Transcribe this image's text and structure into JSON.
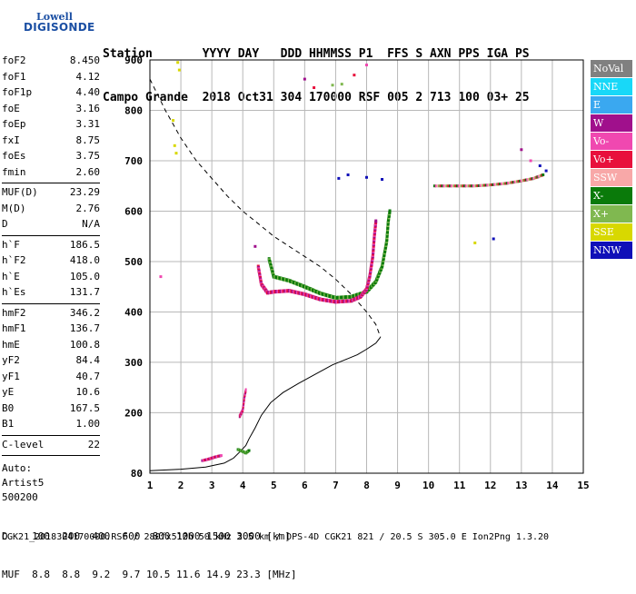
{
  "logo": {
    "line1": "Lowell",
    "line2": "DIGISONDE"
  },
  "header": {
    "row1": "Station       YYYY DAY   DDD HHMMSS P1  FFS S AXN PPS IGA PS",
    "row2": "Campo Grande  2018 Oct31 304 170000 RSF 005 2 713 100 03+ 25"
  },
  "params": {
    "block1": [
      {
        "k": "foF2",
        "v": "8.450"
      },
      {
        "k": "foF1",
        "v": "4.12"
      },
      {
        "k": "foF1p",
        "v": "4.40"
      },
      {
        "k": "foE",
        "v": "3.16"
      },
      {
        "k": "foEp",
        "v": "3.31"
      },
      {
        "k": "fxI",
        "v": "8.75"
      },
      {
        "k": "foEs",
        "v": "3.75"
      },
      {
        "k": "fmin",
        "v": "2.60"
      }
    ],
    "block2": [
      {
        "k": "MUF(D)",
        "v": "23.29"
      },
      {
        "k": "M(D)",
        "v": "2.76"
      },
      {
        "k": "D",
        "v": "N/A"
      }
    ],
    "block3": [
      {
        "k": "h`F",
        "v": "186.5"
      },
      {
        "k": "h`F2",
        "v": "418.0"
      },
      {
        "k": "h`E",
        "v": "105.0"
      },
      {
        "k": "h`Es",
        "v": "131.7"
      }
    ],
    "block4": [
      {
        "k": "hmF2",
        "v": "346.2"
      },
      {
        "k": "hmF1",
        "v": "136.7"
      },
      {
        "k": "hmE",
        "v": "100.8"
      },
      {
        "k": "yF2",
        "v": "84.4"
      },
      {
        "k": "yF1",
        "v": "40.7"
      },
      {
        "k": "yE",
        "v": "10.6"
      },
      {
        "k": "B0",
        "v": "167.5"
      },
      {
        "k": "B1",
        "v": "1.00"
      }
    ],
    "block5": [
      {
        "k": "C-level",
        "v": "22"
      }
    ],
    "auto": [
      "Auto:",
      "Artist5",
      "500200"
    ]
  },
  "legend": [
    {
      "label": "NoVal",
      "color": "#808080"
    },
    {
      "label": "NNE",
      "color": "#18d8f8"
    },
    {
      "label": "E",
      "color": "#3aa8f0"
    },
    {
      "label": "W",
      "color": "#a0108c"
    },
    {
      "label": "Vo-",
      "color": "#f048b0"
    },
    {
      "label": "Vo+",
      "color": "#e8103c"
    },
    {
      "label": "SSW",
      "color": "#f8a8a8"
    },
    {
      "label": "X-",
      "color": "#0a7a0a"
    },
    {
      "label": "X+",
      "color": "#80b850"
    },
    {
      "label": "SSE",
      "color": "#d8d800"
    },
    {
      "label": "NNW",
      "color": "#1010b8"
    }
  ],
  "bottom": {
    "d_row": "D    100  200  400  600  800 1000 1500 3000 [km]",
    "muf_row": "MUF  8.8  8.8  9.2  9.7 10.5 11.6 14.9 23.3 [MHz]",
    "footer": "CGK21_2018304170000.RSF / 280fx512h 50 kHz 2.5 km / DPS-4D CGK21 821 / 20.5 S 305.0 E Ion2Png 1.3.20"
  },
  "chart_data": {
    "type": "scatter",
    "xlabel": "",
    "ylabel": "",
    "xlim": [
      1,
      15
    ],
    "ylim": [
      80,
      900
    ],
    "xticks": [
      1,
      2,
      3,
      4,
      5,
      6,
      7,
      8,
      9,
      10,
      11,
      12,
      13,
      14,
      15
    ],
    "yticks": [
      80,
      200,
      300,
      400,
      500,
      600,
      700,
      800,
      900
    ],
    "grid": true,
    "legend_position": "right",
    "profile_solid": [
      [
        1.0,
        85
      ],
      [
        2.0,
        88
      ],
      [
        2.8,
        92
      ],
      [
        3.4,
        100
      ],
      [
        3.7,
        110
      ],
      [
        3.9,
        122
      ],
      [
        4.1,
        135
      ],
      [
        4.2,
        148
      ],
      [
        4.4,
        170
      ],
      [
        4.6,
        195
      ],
      [
        4.9,
        220
      ],
      [
        5.3,
        240
      ],
      [
        5.8,
        258
      ],
      [
        6.3,
        275
      ],
      [
        6.9,
        295
      ],
      [
        7.3,
        305
      ],
      [
        7.7,
        315
      ],
      [
        8.0,
        326
      ],
      [
        8.3,
        338
      ],
      [
        8.45,
        350
      ]
    ],
    "profile_dashed": [
      [
        1.0,
        862
      ],
      [
        1.5,
        800
      ],
      [
        2.0,
        745
      ],
      [
        2.5,
        700
      ],
      [
        3.0,
        665
      ],
      [
        3.5,
        630
      ],
      [
        4.0,
        600
      ],
      [
        4.5,
        575
      ],
      [
        5.0,
        550
      ],
      [
        5.5,
        530
      ],
      [
        6.0,
        510
      ],
      [
        6.5,
        490
      ],
      [
        7.0,
        465
      ],
      [
        7.5,
        435
      ],
      [
        8.0,
        400
      ],
      [
        8.3,
        375
      ],
      [
        8.45,
        350
      ]
    ],
    "trace_vo": [
      [
        4.5,
        490
      ],
      [
        4.6,
        455
      ],
      [
        4.8,
        438
      ],
      [
        5.0,
        440
      ],
      [
        5.5,
        442
      ],
      [
        6.0,
        435
      ],
      [
        6.5,
        425
      ],
      [
        7.0,
        420
      ],
      [
        7.5,
        422
      ],
      [
        7.8,
        430
      ],
      [
        8.0,
        445
      ],
      [
        8.1,
        470
      ],
      [
        8.2,
        510
      ],
      [
        8.25,
        550
      ],
      [
        8.3,
        580
      ]
    ],
    "trace_x": [
      [
        4.85,
        505
      ],
      [
        5.0,
        470
      ],
      [
        5.5,
        462
      ],
      [
        6.0,
        450
      ],
      [
        6.5,
        437
      ],
      [
        7.0,
        428
      ],
      [
        7.5,
        430
      ],
      [
        8.0,
        440
      ],
      [
        8.3,
        460
      ],
      [
        8.5,
        490
      ],
      [
        8.65,
        540
      ],
      [
        8.7,
        580
      ],
      [
        8.75,
        600
      ]
    ],
    "trace_e_vo": [
      [
        2.7,
        105
      ],
      [
        2.9,
        108
      ],
      [
        3.1,
        112
      ],
      [
        3.3,
        115
      ]
    ],
    "trace_e_x": [
      [
        3.85,
        127
      ],
      [
        4.0,
        123
      ],
      [
        4.1,
        120
      ],
      [
        4.2,
        125
      ]
    ],
    "trace_es": [
      [
        3.9,
        193
      ],
      [
        4.0,
        205
      ],
      [
        4.05,
        230
      ],
      [
        4.1,
        245
      ]
    ],
    "trace_multi": [
      [
        10.2,
        650
      ],
      [
        10.7,
        650
      ],
      [
        11.5,
        650
      ],
      [
        12.0,
        652
      ],
      [
        12.5,
        655
      ],
      [
        13.0,
        660
      ],
      [
        13.4,
        665
      ],
      [
        13.7,
        672
      ]
    ],
    "scatter_misc": [
      {
        "x": 1.35,
        "y": 470,
        "c": "#f048b0"
      },
      {
        "x": 1.9,
        "y": 895,
        "c": "#d8d800"
      },
      {
        "x": 1.95,
        "y": 880,
        "c": "#d8d800"
      },
      {
        "x": 1.75,
        "y": 780,
        "c": "#d8d800"
      },
      {
        "x": 1.8,
        "y": 730,
        "c": "#d8d800"
      },
      {
        "x": 1.85,
        "y": 715,
        "c": "#d8d800"
      },
      {
        "x": 6.0,
        "y": 862,
        "c": "#a0108c"
      },
      {
        "x": 6.3,
        "y": 845,
        "c": "#e8103c"
      },
      {
        "x": 6.9,
        "y": 850,
        "c": "#80b850"
      },
      {
        "x": 7.2,
        "y": 852,
        "c": "#80b850"
      },
      {
        "x": 7.6,
        "y": 870,
        "c": "#e8103c"
      },
      {
        "x": 8.0,
        "y": 890,
        "c": "#f048b0"
      },
      {
        "x": 4.4,
        "y": 530,
        "c": "#a0108c"
      },
      {
        "x": 7.1,
        "y": 665,
        "c": "#1010b8"
      },
      {
        "x": 7.4,
        "y": 672,
        "c": "#1010b8"
      },
      {
        "x": 8.0,
        "y": 667,
        "c": "#1010b8"
      },
      {
        "x": 8.5,
        "y": 663,
        "c": "#1010b8"
      },
      {
        "x": 11.5,
        "y": 537,
        "c": "#d8d800"
      },
      {
        "x": 12.1,
        "y": 545,
        "c": "#1010b8"
      },
      {
        "x": 13.0,
        "y": 722,
        "c": "#a0108c"
      },
      {
        "x": 13.6,
        "y": 690,
        "c": "#1010b8"
      },
      {
        "x": 13.8,
        "y": 680,
        "c": "#1010b8"
      },
      {
        "x": 13.3,
        "y": 700,
        "c": "#f048b0"
      }
    ]
  }
}
